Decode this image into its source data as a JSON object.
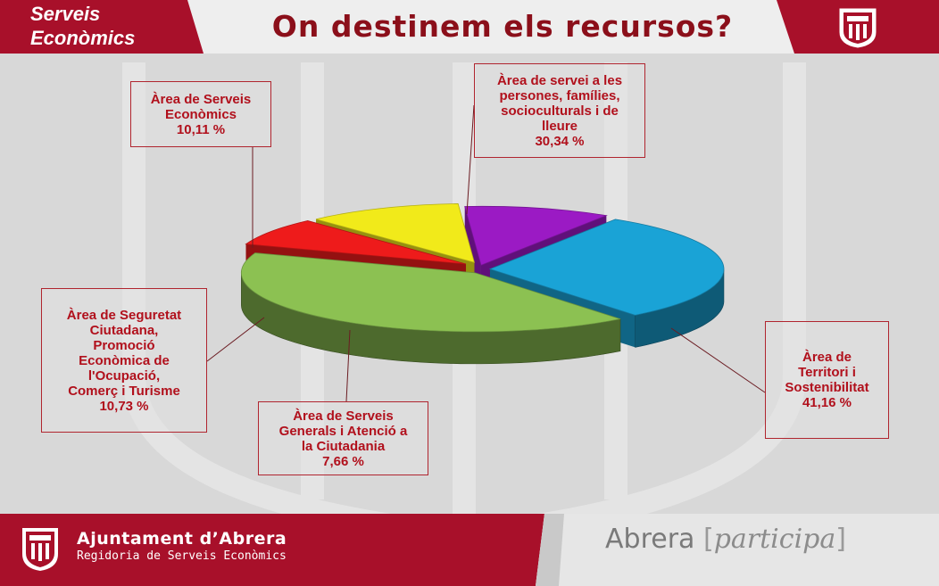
{
  "header": {
    "corner_line1": "Serveis",
    "corner_line2": "Econòmics",
    "title": "On destinem els recursos?"
  },
  "footer": {
    "brand": "Ajuntament d’Abrera",
    "subtitle": "Regidoria de Serveis Econòmics",
    "participa_prefix": "Abrera",
    "participa_word": "participa",
    "bracket_open": "[",
    "bracket_close": "]"
  },
  "colors": {
    "brand_red": "#a8102a",
    "title_red": "#8b0f1a",
    "label_red": "#b1101c"
  },
  "chart_data": {
    "type": "pie",
    "title": "On destinem els recursos?",
    "unit": "%",
    "slices": [
      {
        "label": "Àrea de servei a les persones, famílies, socioculturals i de lleure",
        "value": 30.34,
        "display": "30,34 %",
        "color": "#1aa3d6"
      },
      {
        "label": "Àrea de Territori i Sostenibilitat",
        "value": 41.16,
        "display": "41,16 %",
        "color": "#8cc152"
      },
      {
        "label": "Àrea de Serveis Generals i Atenció a la Ciutadania",
        "value": 7.66,
        "display": "7,66 %",
        "color": "#ee1b1b"
      },
      {
        "label": "Àrea de Seguretat Ciutadana, Promoció Econòmica de l'Ocupació, Comerç i Turisme",
        "value": 10.73,
        "display": "10,73 %",
        "color": "#f1ea1a"
      },
      {
        "label": "Àrea de Serveis Econòmics",
        "value": 10.11,
        "display": "10,11 %",
        "color": "#9b1ac4"
      }
    ],
    "callouts": {
      "serveis_economics": [
        "Àrea de Serveis",
        "Econòmics",
        "10,11 %"
      ],
      "persones": [
        "Àrea de servei a les",
        "persones, famílies,",
        "socioculturals i de",
        "lleure",
        "30,34 %"
      ],
      "seguretat": [
        "Àrea de Seguretat",
        "Ciutadana,",
        "Promoció",
        "Econòmica de",
        "l'Ocupació,",
        "Comerç i Turisme",
        "10,73 %"
      ],
      "generals": [
        "Àrea de Serveis",
        "Generals i Atenció a",
        "la Ciutadania",
        "7,66 %"
      ],
      "territori": [
        "Àrea de",
        "Territori i",
        "Sostenibilitat",
        "41,16 %"
      ]
    }
  }
}
